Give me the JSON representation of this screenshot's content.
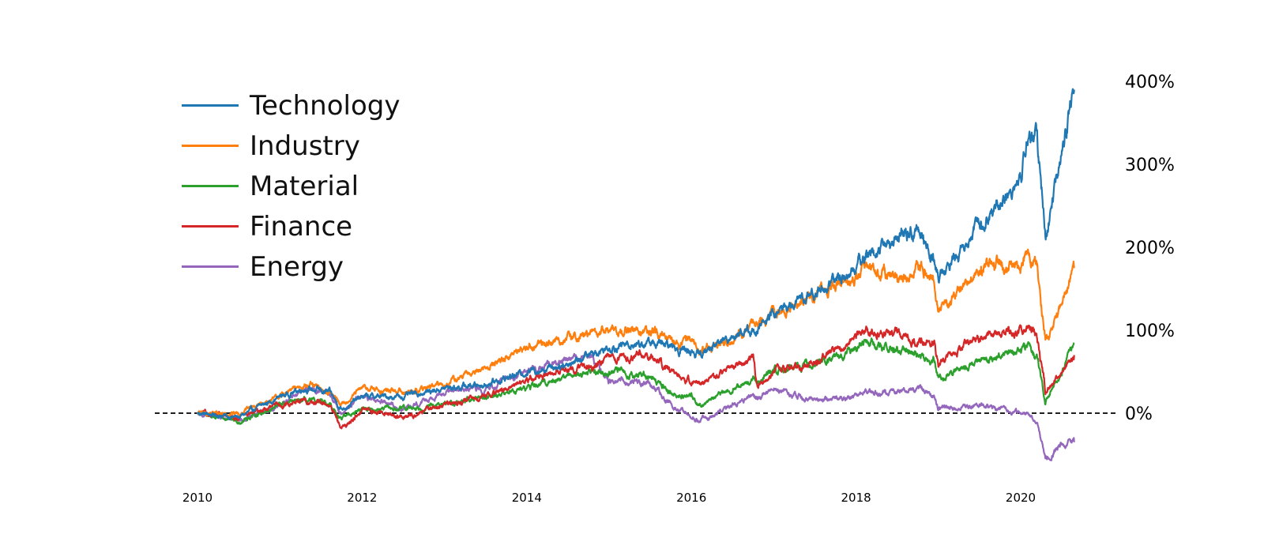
{
  "chart_data": {
    "type": "line",
    "title": "",
    "xlabel": "",
    "ylabel": "",
    "x_ticks": [
      "2010",
      "2012",
      "2014",
      "2016",
      "2018",
      "2020"
    ],
    "y_ticks": [
      "0%",
      "100%",
      "200%",
      "300%",
      "400%"
    ],
    "xlim": [
      2009.5,
      2021.2
    ],
    "ylim": [
      -80,
      420
    ],
    "grid": false,
    "legend_position": "top-left",
    "baseline": {
      "value": 0,
      "style": "dashed",
      "color": "#000000"
    },
    "x": [
      2010.0,
      2010.5,
      2011.0,
      2011.3,
      2011.6,
      2011.75,
      2012.0,
      2012.5,
      2013.0,
      2013.5,
      2014.0,
      2014.5,
      2014.75,
      2015.0,
      2015.5,
      2015.75,
      2016.0,
      2016.1,
      2016.5,
      2016.75,
      2016.8,
      2017.0,
      2017.5,
      2018.0,
      2018.1,
      2018.5,
      2018.75,
      2018.95,
      2019.0,
      2019.5,
      2020.0,
      2020.1,
      2020.2,
      2020.3,
      2020.5,
      2020.65
    ],
    "series": [
      {
        "name": "Technology",
        "color": "#1f77b4",
        "values": [
          0,
          -5,
          20,
          30,
          25,
          5,
          20,
          20,
          30,
          35,
          50,
          60,
          70,
          80,
          85,
          80,
          75,
          70,
          95,
          100,
          100,
          120,
          145,
          175,
          190,
          210,
          220,
          190,
          160,
          230,
          280,
          340,
          330,
          210,
          310,
          390
        ]
      },
      {
        "name": "Industry",
        "color": "#ff7f0e",
        "values": [
          0,
          0,
          20,
          35,
          25,
          10,
          30,
          25,
          35,
          55,
          80,
          90,
          95,
          100,
          98,
          85,
          90,
          75,
          90,
          105,
          105,
          120,
          140,
          165,
          180,
          160,
          175,
          170,
          120,
          175,
          180,
          198,
          175,
          80,
          130,
          175
        ]
      },
      {
        "name": "Material",
        "color": "#2ca02c",
        "values": [
          0,
          -10,
          10,
          15,
          10,
          -5,
          5,
          5,
          10,
          20,
          30,
          45,
          50,
          50,
          45,
          25,
          20,
          10,
          30,
          40,
          40,
          50,
          60,
          75,
          85,
          75,
          70,
          65,
          40,
          65,
          75,
          80,
          70,
          15,
          50,
          85
        ]
      },
      {
        "name": "Finance",
        "color": "#d62728",
        "values": [
          0,
          -5,
          10,
          15,
          10,
          -20,
          5,
          -5,
          10,
          20,
          40,
          55,
          55,
          65,
          70,
          50,
          40,
          35,
          55,
          65,
          30,
          50,
          60,
          90,
          100,
          95,
          90,
          85,
          60,
          90,
          100,
          110,
          90,
          25,
          50,
          70
        ]
      },
      {
        "name": "Energy",
        "color": "#9467bd",
        "values": [
          0,
          -10,
          10,
          30,
          25,
          0,
          20,
          5,
          25,
          30,
          50,
          65,
          70,
          40,
          35,
          10,
          -5,
          -10,
          10,
          20,
          20,
          30,
          15,
          20,
          25,
          25,
          30,
          20,
          5,
          10,
          0,
          0,
          -10,
          -55,
          -35,
          -35
        ]
      }
    ]
  }
}
